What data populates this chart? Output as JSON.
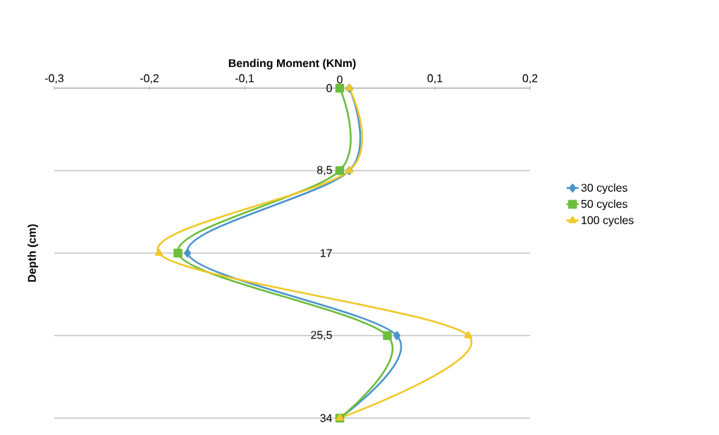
{
  "chart_data": {
    "type": "line",
    "xlabel": "Bending Moment (KNm)",
    "ylabel": "Depth (cm)",
    "xlim": [
      -0.3,
      0.2
    ],
    "ylim": [
      34,
      0
    ],
    "xticks": [
      {
        "value": -0.3,
        "label": "-0,3"
      },
      {
        "value": -0.2,
        "label": "-0,2"
      },
      {
        "value": -0.1,
        "label": "-0,1"
      },
      0,
      {
        "value": 0.1,
        "label": "0,1"
      },
      {
        "value": 0.2,
        "label": "0,2"
      }
    ],
    "yticks": [
      0,
      {
        "value": 8.5,
        "label": "8,5"
      },
      17,
      {
        "value": 25.5,
        "label": "25,5"
      },
      34
    ],
    "grid": "y",
    "legend": "right",
    "series": [
      {
        "name": "30 cycles",
        "color": "#4a94cc",
        "marker": "diamond",
        "x": [
          0.01,
          0.01,
          -0.16,
          0.06,
          0
        ],
        "values": [
          0,
          8.5,
          17,
          25.5,
          34
        ]
      },
      {
        "name": "50 cycles",
        "color": "#6cbd3c",
        "marker": "square",
        "x": [
          0,
          0,
          -0.17,
          0.05,
          0
        ],
        "values": [
          0,
          8.5,
          17,
          25.5,
          34
        ]
      },
      {
        "name": "100 cycles",
        "color": "#f0c828",
        "marker": "triangle",
        "x": [
          0.01,
          0.01,
          -0.19,
          0.135,
          0
        ],
        "values": [
          0,
          8.5,
          17,
          25.5,
          34
        ]
      }
    ]
  }
}
